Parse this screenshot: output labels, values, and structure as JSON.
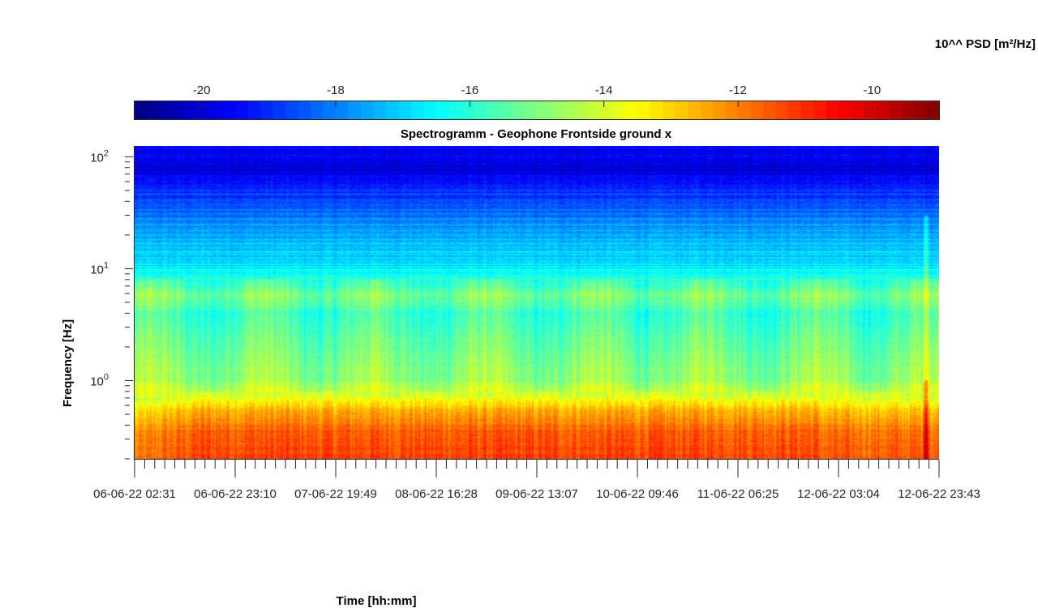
{
  "chart_data": {
    "type": "heatmap",
    "title": "Spectrogramm - Geophone Frontside ground x",
    "xlabel": "Time [hh:mm]",
    "ylabel": "Frequency [Hz]",
    "x_tick_labels": [
      "06-06-22 02:31",
      "06-06-22 23:10",
      "07-06-22 19:49",
      "08-06-22 16:28",
      "09-06-22 13:07",
      "10-06-22 09:46",
      "11-06-22 06:25",
      "12-06-22 03:04",
      "12-06-22 23:43"
    ],
    "y_scale": "log",
    "y_tick_values": [
      1,
      10,
      100
    ],
    "y_tick_labels": [
      {
        "base": "10",
        "exp": "0"
      },
      {
        "base": "10",
        "exp": "1"
      },
      {
        "base": "10",
        "exp": "2"
      }
    ],
    "ylim": [
      0.2,
      125
    ],
    "colorbar": {
      "title": "10^^ PSD [m²/Hz]",
      "range": [
        -21,
        -9
      ],
      "ticks": [
        -20,
        -18,
        -16,
        -14,
        -12,
        -10
      ],
      "colormap": "jet",
      "placement": "top"
    },
    "psd_profile_by_frequency": [
      {
        "hz": 0.2,
        "log10_psd": -11.2
      },
      {
        "hz": 0.35,
        "log10_psd": -11.6
      },
      {
        "hz": 0.55,
        "log10_psd": -12.6
      },
      {
        "hz": 0.7,
        "log10_psd": -13.8
      },
      {
        "hz": 1.0,
        "log10_psd": -14.7
      },
      {
        "hz": 2.0,
        "log10_psd": -15.2
      },
      {
        "hz": 4.0,
        "log10_psd": -15.8
      },
      {
        "hz": 5.8,
        "log10_psd": -15.0
      },
      {
        "hz": 10,
        "log10_psd": -16.7
      },
      {
        "hz": 20,
        "log10_psd": -17.6
      },
      {
        "hz": 40,
        "log10_psd": -18.6
      },
      {
        "hz": 80,
        "log10_psd": -20.0
      },
      {
        "hz": 125,
        "log10_psd": -19.4
      }
    ]
  }
}
